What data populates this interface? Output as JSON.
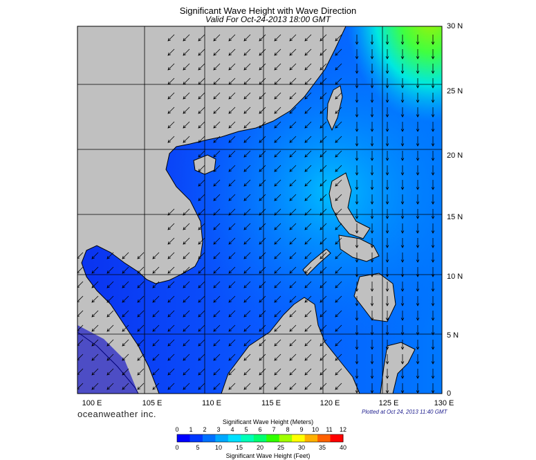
{
  "title": "Significant Wave Height with Wave Direction",
  "subtitle": "Valid For Oct-24-2013 18:00 GMT",
  "brand": "oceanweather inc.",
  "plotted": "Plotted at Oct 24, 2013 11:40 GMT",
  "lat_labels": [
    "30 N",
    "25 N",
    "20 N",
    "15 N",
    "10 N",
    "5 N",
    "0"
  ],
  "lon_labels": [
    "100 E",
    "105 E",
    "110 E",
    "115 E",
    "120 E",
    "125 E",
    "130 E"
  ],
  "colorbar": {
    "meters_title": "Significant Wave Height (Meters)",
    "feet_title": "Significant Wave Height (Feet)",
    "meters_ticks": [
      "0",
      "1",
      "2",
      "3",
      "4",
      "5",
      "6",
      "7",
      "8",
      "9",
      "10",
      "11",
      "12"
    ],
    "feet_ticks": [
      "0",
      "5",
      "10",
      "15",
      "20",
      "25",
      "30",
      "35",
      "40"
    ],
    "colors": [
      "#0000ff",
      "#0038ff",
      "#0070ff",
      "#00a8ff",
      "#00e0ff",
      "#00ffb8",
      "#00ff70",
      "#30ff00",
      "#a0ff00",
      "#ffff00",
      "#ffb000",
      "#ff6000",
      "#ff0000"
    ]
  },
  "colors": {
    "land": "#c0c0c0",
    "grid": "#000000",
    "sea_low": "#0a3cf0",
    "sea_mid": "#00c8ff",
    "sea_high": "#70ff30"
  },
  "icons": {
    "arrows": "wave-direction-arrow"
  }
}
